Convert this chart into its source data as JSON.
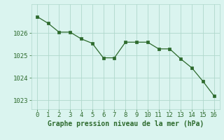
{
  "x": [
    0,
    1,
    2,
    3,
    4,
    5,
    6,
    7,
    8,
    9,
    10,
    11,
    12,
    13,
    14,
    15,
    16
  ],
  "y": [
    1026.75,
    1026.45,
    1026.05,
    1026.05,
    1025.75,
    1025.55,
    1024.9,
    1024.9,
    1025.6,
    1025.6,
    1025.6,
    1025.3,
    1025.3,
    1024.85,
    1024.45,
    1023.85,
    1023.2
  ],
  "line_color": "#2d6a2d",
  "marker_color": "#2d6a2d",
  "bg_color": "#daf4ef",
  "grid_color": "#b0d8cc",
  "xlabel": "Graphe pression niveau de la mer (hPa)",
  "xlabel_color": "#2d6a2d",
  "xlabel_fontsize": 7.0,
  "tick_color": "#2d6a2d",
  "tick_fontsize": 6.5,
  "ylim": [
    1022.6,
    1027.3
  ],
  "xlim": [
    -0.5,
    16.5
  ],
  "yticks": [
    1023,
    1024,
    1025,
    1026
  ],
  "xticks": [
    0,
    1,
    2,
    3,
    4,
    5,
    6,
    7,
    8,
    9,
    10,
    11,
    12,
    13,
    14,
    15,
    16
  ]
}
